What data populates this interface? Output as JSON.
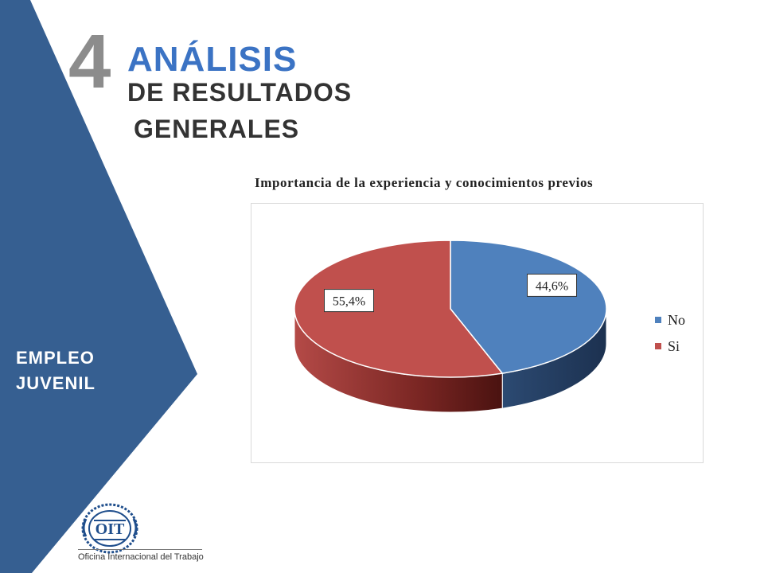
{
  "header": {
    "number": "4",
    "title_line1": "ANÁLISIS",
    "title_line2": "DE RESULTADOS",
    "title_line3": "GENERALES"
  },
  "sidebar": {
    "label_line1": "EMPLEO",
    "label_line2": "JUVENIL",
    "color": "#365f91"
  },
  "logo": {
    "text": "OIT",
    "caption": "Oficina Internacional del Trabajo",
    "color": "#1f4e8c"
  },
  "chart_data": {
    "type": "pie",
    "title": "Importancia de la experiencia y conocimientos previos",
    "slices": [
      {
        "name": "No",
        "value": 44.6,
        "label": "44,6%",
        "color": "#4f81bd",
        "dark": "#1f3552"
      },
      {
        "name": "Si",
        "value": 55.4,
        "label": "55,4%",
        "color": "#c0504d",
        "dark": "#4a1210"
      }
    ],
    "legend_position": "right",
    "style": "3d"
  }
}
